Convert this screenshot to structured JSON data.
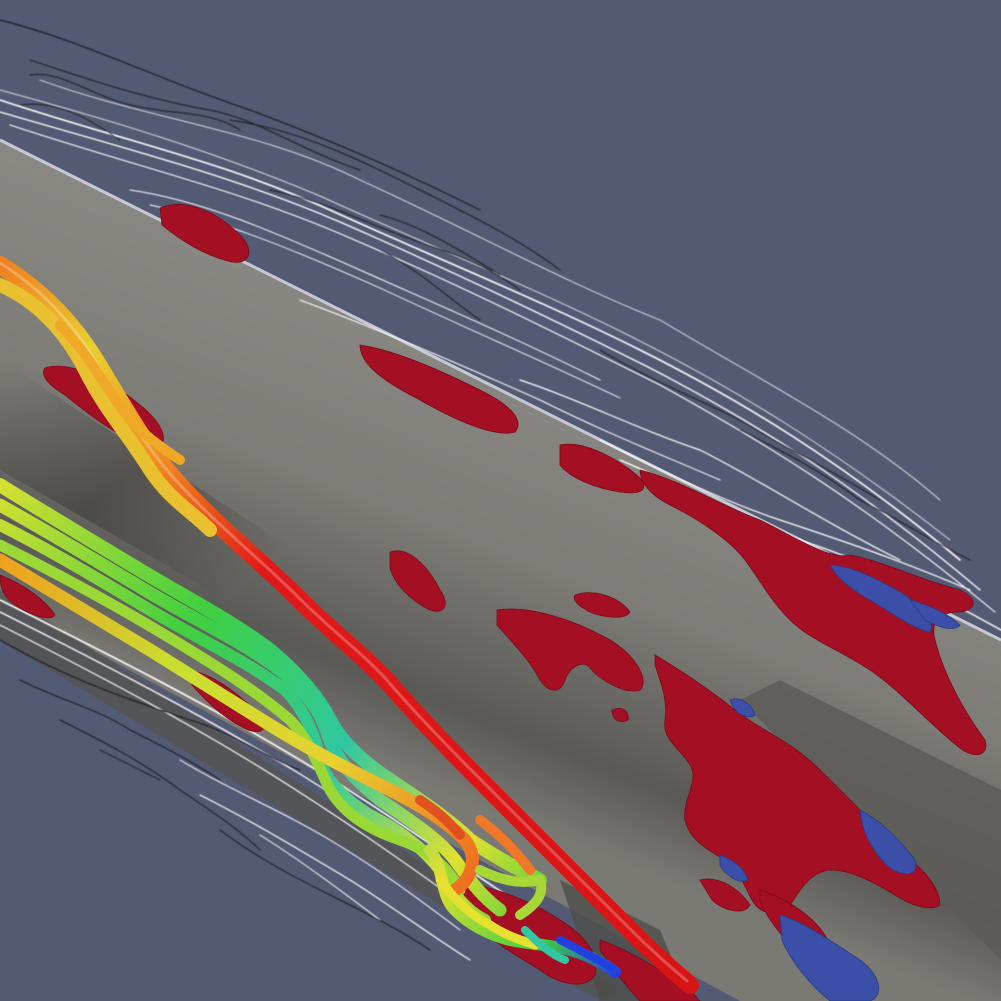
{
  "scene": {
    "background_color": "#535a73",
    "pipe_color": "#8a8882",
    "vortex_positive_color": "#a50f23",
    "vortex_negative_color": "#3b4fa8",
    "contour_light_color": "#ffffff",
    "contour_dark_color": "#1c1c24",
    "streamline_colormap": [
      "#2040e0",
      "#20c0d0",
      "#30d040",
      "#e8e030",
      "#f08020",
      "#e01818"
    ],
    "streamline_count": 8
  }
}
